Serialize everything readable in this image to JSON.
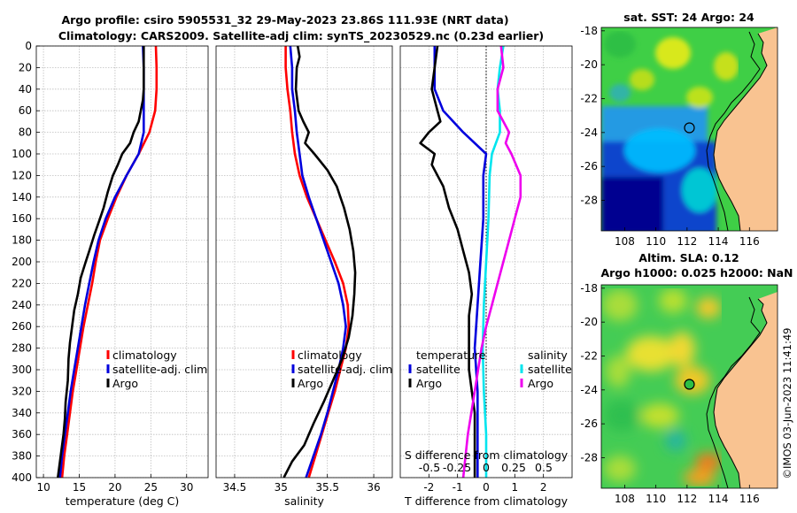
{
  "title": {
    "line1": "Argo profile: csiro 5905531_32 29-May-2023 23.86S 111.93E (NRT data)",
    "line2": "Climatology: CARS2009. Satellite-adj clim: synTS_20230529.nc (0.23d earlier)"
  },
  "watermark": "©IMOS 03-Jun-2023 11:41:49",
  "colors": {
    "climatology": "#ff0000",
    "satellite": "#0000dd",
    "argo": "#000000",
    "s_satellite": "#00e5ee",
    "s_argo": "#ee00ee",
    "grid": "#bdbdbd"
  },
  "chart_data": [
    {
      "type": "line",
      "id": "temperature",
      "title": "",
      "xlabel": "temperature (deg C)",
      "ylabel": "",
      "xlim": [
        9,
        33
      ],
      "ylim": [
        400,
        0
      ],
      "xticks": [
        10,
        15,
        20,
        25,
        30
      ],
      "xtick_labels": [
        "10",
        "15",
        "20",
        "25",
        "30"
      ],
      "yticks": [
        0,
        20,
        40,
        60,
        80,
        100,
        120,
        140,
        160,
        180,
        200,
        220,
        240,
        260,
        280,
        300,
        320,
        340,
        360,
        380,
        400
      ],
      "ytick_labels": [
        "0",
        "20",
        "40",
        "60",
        "80",
        "100",
        "120",
        "140",
        "160",
        "180",
        "200",
        "220",
        "240",
        "260",
        "280",
        "300",
        "320",
        "340",
        "360",
        "380",
        "400"
      ],
      "legend": [
        "climatology",
        "satellite-adj. clim",
        "Argo"
      ],
      "series": [
        {
          "name": "climatology",
          "color": "#ff0000",
          "points": [
            [
              25.7,
              0
            ],
            [
              25.8,
              20
            ],
            [
              25.8,
              40
            ],
            [
              25.6,
              60
            ],
            [
              24.8,
              80
            ],
            [
              23.3,
              100
            ],
            [
              21.6,
              120
            ],
            [
              20.2,
              140
            ],
            [
              19.0,
              160
            ],
            [
              17.9,
              180
            ],
            [
              17.3,
              200
            ],
            [
              16.8,
              220
            ],
            [
              16.2,
              240
            ],
            [
              15.6,
              260
            ],
            [
              15.1,
              280
            ],
            [
              14.6,
              300
            ],
            [
              14.1,
              320
            ],
            [
              13.7,
              340
            ],
            [
              13.3,
              360
            ],
            [
              12.9,
              380
            ],
            [
              12.6,
              400
            ]
          ]
        },
        {
          "name": "satellite-adj. clim",
          "color": "#0000dd",
          "points": [
            [
              23.9,
              0
            ],
            [
              24.0,
              20
            ],
            [
              24.0,
              40
            ],
            [
              24.0,
              60
            ],
            [
              24.0,
              80
            ],
            [
              23.3,
              100
            ],
            [
              21.6,
              120
            ],
            [
              20.0,
              140
            ],
            [
              18.7,
              160
            ],
            [
              17.7,
              180
            ],
            [
              17.0,
              200
            ],
            [
              16.4,
              220
            ],
            [
              15.8,
              240
            ],
            [
              15.3,
              260
            ],
            [
              14.8,
              280
            ],
            [
              14.3,
              300
            ],
            [
              13.8,
              320
            ],
            [
              13.4,
              340
            ],
            [
              13.0,
              360
            ],
            [
              12.6,
              380
            ],
            [
              12.3,
              400
            ]
          ]
        },
        {
          "name": "Argo",
          "color": "#000000",
          "points": [
            [
              24.0,
              0
            ],
            [
              24.0,
              20
            ],
            [
              24.0,
              40
            ],
            [
              23.9,
              50
            ],
            [
              23.6,
              60
            ],
            [
              23.3,
              70
            ],
            [
              22.6,
              80
            ],
            [
              22.1,
              90
            ],
            [
              21.0,
              100
            ],
            [
              20.4,
              110
            ],
            [
              19.7,
              120
            ],
            [
              19.0,
              135
            ],
            [
              18.4,
              150
            ],
            [
              17.9,
              160
            ],
            [
              17.1,
              175
            ],
            [
              16.4,
              190
            ],
            [
              15.9,
              200
            ],
            [
              15.2,
              215
            ],
            [
              14.8,
              230
            ],
            [
              14.3,
              245
            ],
            [
              14.0,
              260
            ],
            [
              13.7,
              275
            ],
            [
              13.5,
              290
            ],
            [
              13.4,
              310
            ],
            [
              13.1,
              330
            ],
            [
              13.0,
              345
            ],
            [
              12.8,
              360
            ],
            [
              12.5,
              375
            ],
            [
              12.2,
              390
            ],
            [
              12.0,
              400
            ]
          ]
        }
      ]
    },
    {
      "type": "line",
      "id": "salinity",
      "title": "",
      "xlabel": "salinity",
      "ylabel": "",
      "xlim": [
        34.3,
        36.2
      ],
      "ylim": [
        400,
        0
      ],
      "xticks": [
        34.5,
        35,
        35.5,
        36
      ],
      "xtick_labels": [
        "34.5",
        "35",
        "35.5",
        "36"
      ],
      "legend": [
        "climatology",
        "satellite-adj. clim",
        "Argo"
      ],
      "series": [
        {
          "name": "climatology",
          "color": "#ff0000",
          "points": [
            [
              35.05,
              0
            ],
            [
              35.05,
              20
            ],
            [
              35.07,
              40
            ],
            [
              35.1,
              60
            ],
            [
              35.12,
              80
            ],
            [
              35.15,
              100
            ],
            [
              35.2,
              120
            ],
            [
              35.28,
              140
            ],
            [
              35.38,
              160
            ],
            [
              35.48,
              180
            ],
            [
              35.58,
              200
            ],
            [
              35.67,
              220
            ],
            [
              35.72,
              240
            ],
            [
              35.73,
              260
            ],
            [
              35.7,
              280
            ],
            [
              35.64,
              300
            ],
            [
              35.58,
              320
            ],
            [
              35.51,
              340
            ],
            [
              35.44,
              360
            ],
            [
              35.37,
              380
            ],
            [
              35.3,
              400
            ]
          ]
        },
        {
          "name": "satellite-adj. clim",
          "color": "#0000dd",
          "points": [
            [
              35.1,
              0
            ],
            [
              35.12,
              20
            ],
            [
              35.12,
              40
            ],
            [
              35.15,
              60
            ],
            [
              35.17,
              80
            ],
            [
              35.2,
              100
            ],
            [
              35.23,
              120
            ],
            [
              35.3,
              140
            ],
            [
              35.38,
              160
            ],
            [
              35.46,
              180
            ],
            [
              35.54,
              200
            ],
            [
              35.62,
              220
            ],
            [
              35.67,
              240
            ],
            [
              35.7,
              260
            ],
            [
              35.67,
              280
            ],
            [
              35.62,
              300
            ],
            [
              35.56,
              320
            ],
            [
              35.5,
              340
            ],
            [
              35.43,
              360
            ],
            [
              35.35,
              380
            ],
            [
              35.27,
              400
            ]
          ]
        },
        {
          "name": "Argo",
          "color": "#000000",
          "points": [
            [
              35.18,
              0
            ],
            [
              35.2,
              10
            ],
            [
              35.17,
              20
            ],
            [
              35.16,
              40
            ],
            [
              35.19,
              60
            ],
            [
              35.24,
              70
            ],
            [
              35.3,
              80
            ],
            [
              35.26,
              90
            ],
            [
              35.36,
              100
            ],
            [
              35.5,
              115
            ],
            [
              35.6,
              130
            ],
            [
              35.68,
              150
            ],
            [
              35.74,
              170
            ],
            [
              35.78,
              190
            ],
            [
              35.8,
              210
            ],
            [
              35.79,
              230
            ],
            [
              35.77,
              250
            ],
            [
              35.73,
              270
            ],
            [
              35.66,
              290
            ],
            [
              35.56,
              310
            ],
            [
              35.46,
              330
            ],
            [
              35.35,
              350
            ],
            [
              35.25,
              370
            ],
            [
              35.12,
              385
            ],
            [
              35.03,
              400
            ]
          ]
        }
      ]
    },
    {
      "type": "line",
      "id": "differences",
      "title": "",
      "xlabel": "T difference from climatology",
      "ylabel": "",
      "xlim": [
        -3,
        3
      ],
      "ylim": [
        400,
        0
      ],
      "xticks": [
        -2,
        -1,
        0,
        1,
        2
      ],
      "xtick_labels": [
        "-2",
        "-1",
        "0",
        "1",
        "2"
      ],
      "top_axis_label": "S difference from climatology",
      "top_ticks": [
        -0.5,
        -0.25,
        0,
        0.25,
        0.5
      ],
      "top_tick_labels": [
        "-0.5",
        "-0.25",
        "0",
        "0.25",
        "0.5"
      ],
      "legend": [
        "temperature",
        "satellite",
        "Argo",
        "salinity",
        "satellite",
        "Argo"
      ],
      "series": [
        {
          "name": "temperature satellite",
          "color": "#0000dd",
          "points": [
            [
              -1.8,
              0
            ],
            [
              -1.8,
              20
            ],
            [
              -1.8,
              40
            ],
            [
              -1.5,
              60
            ],
            [
              -0.8,
              80
            ],
            [
              0.0,
              100
            ],
            [
              -0.1,
              120
            ],
            [
              -0.1,
              160
            ],
            [
              -0.2,
              200
            ],
            [
              -0.3,
              240
            ],
            [
              -0.4,
              280
            ],
            [
              -0.3,
              320
            ],
            [
              -0.3,
              360
            ],
            [
              -0.3,
              400
            ]
          ]
        },
        {
          "name": "temperature Argo",
          "color": "#000000",
          "points": [
            [
              -1.7,
              0
            ],
            [
              -1.8,
              20
            ],
            [
              -1.9,
              40
            ],
            [
              -1.7,
              60
            ],
            [
              -1.6,
              70
            ],
            [
              -2.0,
              80
            ],
            [
              -2.3,
              90
            ],
            [
              -1.8,
              100
            ],
            [
              -1.9,
              110
            ],
            [
              -1.5,
              130
            ],
            [
              -1.3,
              150
            ],
            [
              -1.0,
              170
            ],
            [
              -0.8,
              190
            ],
            [
              -0.6,
              210
            ],
            [
              -0.5,
              230
            ],
            [
              -0.6,
              250
            ],
            [
              -0.6,
              270
            ],
            [
              -0.6,
              300
            ],
            [
              -0.5,
              320
            ],
            [
              -0.4,
              340
            ],
            [
              -0.4,
              360
            ],
            [
              -0.4,
              380
            ],
            [
              -0.4,
              400
            ]
          ]
        },
        {
          "name": "salinity satellite",
          "color": "#00e5ee",
          "points": [
            [
              0.15,
              0
            ],
            [
              0.12,
              20
            ],
            [
              0.1,
              40
            ],
            [
              0.12,
              60
            ],
            [
              0.12,
              80
            ],
            [
              0.05,
              100
            ],
            [
              0.03,
              120
            ],
            [
              0.02,
              160
            ],
            [
              0.0,
              200
            ],
            [
              -0.02,
              240
            ],
            [
              -0.03,
              280
            ],
            [
              -0.02,
              320
            ],
            [
              0.0,
              360
            ],
            [
              0.0,
              400
            ]
          ]
        },
        {
          "name": "salinity Argo",
          "color": "#ee00ee",
          "points": [
            [
              0.13,
              0
            ],
            [
              0.15,
              20
            ],
            [
              0.1,
              40
            ],
            [
              0.1,
              60
            ],
            [
              0.2,
              80
            ],
            [
              0.17,
              90
            ],
            [
              0.22,
              100
            ],
            [
              0.3,
              120
            ],
            [
              0.3,
              140
            ],
            [
              0.25,
              160
            ],
            [
              0.2,
              180
            ],
            [
              0.15,
              200
            ],
            [
              0.1,
              220
            ],
            [
              0.05,
              240
            ],
            [
              0.0,
              260
            ],
            [
              -0.04,
              280
            ],
            [
              -0.07,
              300
            ],
            [
              -0.1,
              320
            ],
            [
              -0.13,
              340
            ],
            [
              -0.16,
              360
            ],
            [
              -0.18,
              380
            ],
            [
              -0.2,
              400
            ]
          ]
        }
      ]
    },
    {
      "type": "heatmap",
      "id": "sst_map",
      "title": "sat. SST: 24 Argo: 24",
      "xlim": [
        106.5,
        117.8
      ],
      "ylim": [
        -29.8,
        -17.8
      ],
      "xticks": [
        108,
        110,
        112,
        114,
        116
      ],
      "xtick_labels": [
        "108",
        "110",
        "112",
        "114",
        "116"
      ],
      "yticks": [
        -18,
        -20,
        -22,
        -24,
        -26,
        -28
      ],
      "ytick_labels": [
        "-18",
        "-20",
        "-22",
        "-24",
        "-26",
        "-28"
      ],
      "float_position": [
        111.93,
        -23.86
      ]
    },
    {
      "type": "heatmap",
      "id": "sla_map",
      "title": "Altim. SLA: 0.12",
      "subtitle": "Argo h1000: 0.025 h2000: NaN",
      "xlim": [
        106.5,
        117.8
      ],
      "ylim": [
        -29.8,
        -17.8
      ],
      "xticks": [
        108,
        110,
        112,
        114,
        116
      ],
      "xtick_labels": [
        "108",
        "110",
        "112",
        "114",
        "116"
      ],
      "yticks": [
        -18,
        -20,
        -22,
        -24,
        -26,
        -28
      ],
      "ytick_labels": [
        "-18",
        "-20",
        "-22",
        "-24",
        "-26",
        "-28"
      ],
      "float_position": [
        111.93,
        -23.86
      ]
    }
  ]
}
